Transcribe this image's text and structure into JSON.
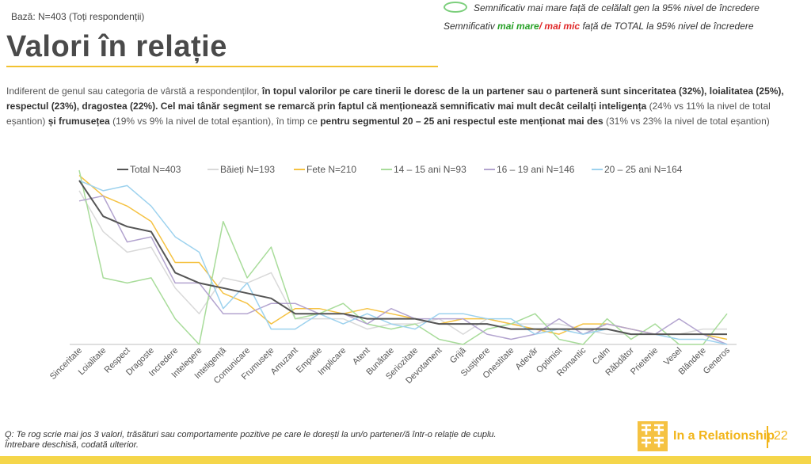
{
  "base": "Bază: N=403 (Toți respondenții)",
  "title": "Valori în relație",
  "significance": {
    "row1": "Semnificativ mai mare față de celălalt gen la 95% nivel de încredere",
    "row2_prefix": "Semnificativ ",
    "row2_green": "mai mare",
    "row2_slash": "/ ",
    "row2_red": "mai mic",
    "row2_suffix": " față de TOTAL la 95% nivel de încredere"
  },
  "intro": {
    "p1": "Indiferent de genul sau categoria de vârstă a respondenților, ",
    "b1": "în topul valorilor pe care tinerii le doresc de la un partener sau o parteneră sunt sinceritatea (32%), loialitatea (25%), respectul (23%), dragostea (22%). Cel mai tânăr segment se remarcă prin faptul că menționează semnificativ mai mult decât ceilalți inteligența",
    "p2": " (24% vs 11% la nivel de total eșantion) ",
    "b2": "și frumusețea",
    "p3": " (19% vs 9% la nivel de total eșantion), în timp ce ",
    "b3": "pentru segmentul 20 – 25 ani respectul este menționat mai des",
    "p4": " (31% vs 23% la nivel de total eșantion)"
  },
  "footnote": {
    "line1": "Q: Te rog scrie mai jos 3 valori, trăsături sau comportamente pozitive pe care le dorești la un/o partener/ă într-o relație de cuplu.",
    "line2": "Întrebare deschisă, codată ulterior."
  },
  "brand": "In a Relationship",
  "page_number": "22",
  "colors": {
    "accent": "#f2b51a",
    "total": "#555555",
    "baieti": "#d9d9d9",
    "fete": "#f5c242",
    "age14": "#a8dc9a",
    "age16": "#b3a4cf",
    "age20": "#9dd2ee"
  },
  "chart_data": {
    "type": "line",
    "ylim": [
      0,
      34
    ],
    "categories": [
      "Sinceritate",
      "Loialitate",
      "Respect",
      "Dragoste",
      "Incredere",
      "Intelegere",
      "Inteligență",
      "Comunicare",
      "Frumusețe",
      "Amuzant",
      "Empatie",
      "Implicare",
      "Atent",
      "Bunătate",
      "Seriozitate",
      "Devotament",
      "Grijă",
      "Susținere",
      "Onestitate",
      "Adevăr",
      "Optimist",
      "Romantic",
      "Calm",
      "Răbdător",
      "Prietenie",
      "Vesel",
      "Blândețe",
      "Generos"
    ],
    "series": [
      {
        "name": "Total N=403",
        "color": "#555555",
        "width": 2,
        "values": [
          32,
          25,
          23,
          22,
          14,
          12,
          11,
          10,
          9,
          6,
          6,
          6,
          5,
          5,
          5,
          4,
          4,
          4,
          3,
          3,
          3,
          3,
          3,
          2,
          2,
          2,
          2,
          2
        ]
      },
      {
        "name": "Băieți N=193",
        "color": "#d9d9d9",
        "width": 1.5,
        "values": [
          30,
          22,
          18,
          19,
          11,
          6,
          13,
          12,
          14,
          5,
          5,
          5,
          3,
          4,
          4,
          5,
          2,
          5,
          4,
          4,
          4,
          3,
          2,
          2,
          2,
          2,
          3,
          3
        ]
      },
      {
        "name": "Fete N=210",
        "color": "#f5c242",
        "width": 1.5,
        "values": [
          33,
          29,
          27,
          24,
          16,
          16,
          10,
          8,
          4,
          7,
          7,
          6,
          7,
          6,
          5,
          4,
          5,
          5,
          4,
          3,
          2,
          4,
          4,
          3,
          2,
          2,
          2,
          1
        ]
      },
      {
        "name": "14 – 15 ani N=93",
        "color": "#a8dc9a",
        "width": 1.5,
        "values": [
          34,
          13,
          12,
          13,
          5,
          0,
          24,
          13,
          19,
          5,
          6,
          8,
          4,
          3,
          4,
          1,
          0,
          3,
          4,
          6,
          1,
          0,
          5,
          1,
          4,
          0,
          0,
          6
        ]
      },
      {
        "name": "16 – 19 ani N=146",
        "color": "#b3a4cf",
        "width": 1.5,
        "values": [
          28,
          29,
          20,
          21,
          12,
          12,
          6,
          6,
          8,
          8,
          6,
          6,
          4,
          7,
          5,
          5,
          5,
          2,
          1,
          2,
          5,
          2,
          4,
          3,
          2,
          5,
          2,
          0
        ]
      },
      {
        "name": "20 – 25 ani N=164",
        "color": "#9dd2ee",
        "width": 1.5,
        "values": [
          32,
          30,
          31,
          27,
          21,
          18,
          7,
          12,
          3,
          3,
          6,
          4,
          6,
          4,
          3,
          6,
          6,
          5,
          5,
          2,
          3,
          2,
          3,
          2,
          2,
          1,
          1,
          0
        ]
      }
    ]
  }
}
